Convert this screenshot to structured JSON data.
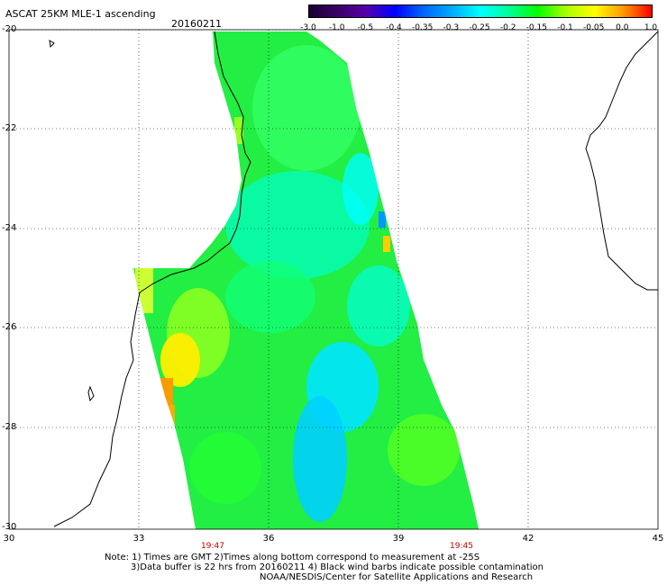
{
  "header": {
    "title": "ASCAT 25KM MLE-1 ascending",
    "date": "20160211"
  },
  "colorbar": {
    "labels": [
      "-3.0",
      "-1.0",
      "-0.5",
      "-0.4",
      "-0.35",
      "-0.3",
      "-0.25",
      "-0.2",
      "-0.15",
      "-0.1",
      "-0.05",
      "0.0",
      "1.0"
    ],
    "colors": [
      "#1a0033",
      "#3a0066",
      "#5500aa",
      "#0000ff",
      "#0066ff",
      "#00aaff",
      "#00ffff",
      "#00ff99",
      "#00ff00",
      "#aaff00",
      "#ffff00",
      "#ff9900",
      "#ff0000"
    ]
  },
  "axes": {
    "lat_labels": [
      "-20",
      "-22",
      "-24",
      "-26",
      "-28",
      "-30"
    ],
    "lon_labels": [
      "30",
      "33",
      "36",
      "39",
      "42",
      "45"
    ]
  },
  "times": [
    "19:47",
    "19:45"
  ],
  "notes": {
    "line1": "Note: 1) Times are GMT 2)Times along bottom correspond to measurement at -25S",
    "line2": "3)Data buffer is 22 hrs from 20160211 4) Black wind barbs indicate possible contamination",
    "line3": "NOAA/NESDIS/Center for Satellite Applications and Research"
  }
}
